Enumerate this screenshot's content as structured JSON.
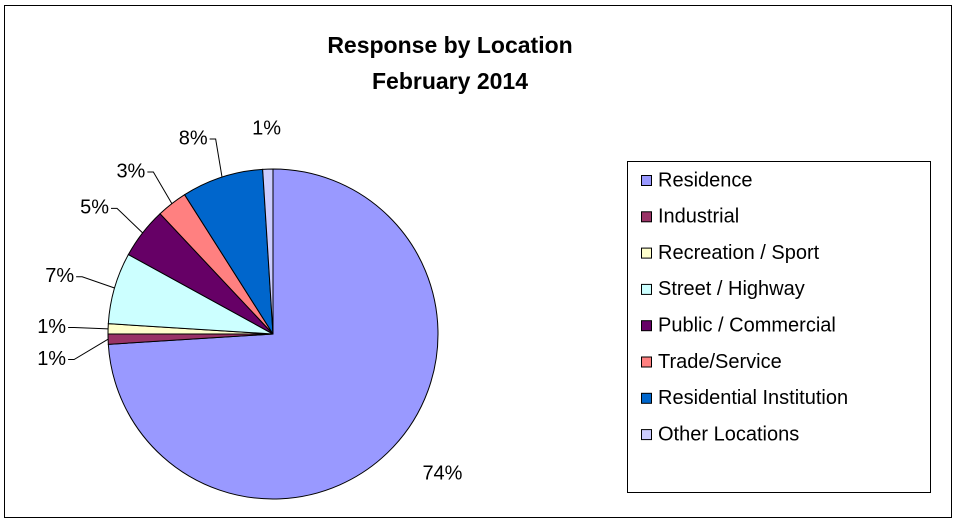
{
  "chart_data": {
    "type": "pie",
    "title": "Response by Location",
    "subtitle": "February  2014",
    "categories": [
      "Residence",
      "Industrial",
      "Recreation / Sport",
      "Street / Highway",
      "Public / Commercial",
      "Trade/Service",
      "Residential Institution",
      "Other Locations"
    ],
    "values": [
      74,
      1,
      1,
      7,
      5,
      3,
      8,
      1
    ],
    "value_labels": [
      "74%",
      "1%",
      "1%",
      "7%",
      "5%",
      "3%",
      "8%",
      "1%"
    ],
    "colors": [
      "#9999ff",
      "#993366",
      "#ffffcc",
      "#ccffff",
      "#660066",
      "#ff8080",
      "#0066cc",
      "#ccccff"
    ],
    "legend": "right"
  }
}
